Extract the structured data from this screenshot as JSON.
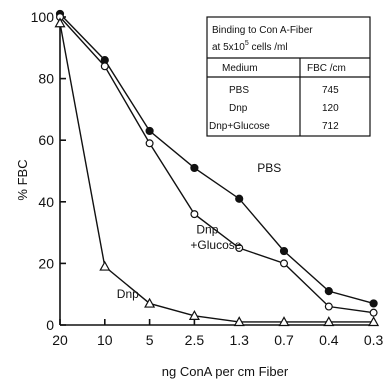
{
  "chart_data": {
    "type": "line",
    "xlabel": "ng ConA per cm Fiber",
    "ylabel": "% FBC",
    "categories": [
      "20",
      "10",
      "5",
      "2.5",
      "1.3",
      "0.7",
      "0.4",
      "0.3"
    ],
    "ylim": [
      0,
      100
    ],
    "yticks": [
      0,
      20,
      40,
      60,
      80,
      100
    ],
    "grid": false,
    "series": [
      {
        "name": "PBS",
        "marker": "filled-circle",
        "values": [
          101,
          86,
          63,
          51,
          41,
          24,
          11,
          7
        ]
      },
      {
        "name": "Dnp +Glucose",
        "marker": "open-circle",
        "values": [
          100,
          84,
          59,
          36,
          25,
          20,
          6,
          4
        ]
      },
      {
        "name": "Dnp",
        "marker": "open-triangle",
        "values": [
          98,
          19,
          7,
          3,
          1,
          1,
          1,
          1
        ]
      }
    ],
    "annotations": [
      {
        "text": "PBS",
        "x": "1.3",
        "y": 51
      },
      {
        "text": "Dnp",
        "x": "2.5",
        "y": 31
      },
      {
        "text": "+Glucose",
        "x": "2.5",
        "y": 26
      },
      {
        "text": "Dnp",
        "x": "10",
        "y": 10
      }
    ],
    "table": {
      "title_line1": "Binding to Con A-Fiber",
      "title_line2": "at 5x10",
      "title_exp": "5",
      "title_suffix": " cells /ml",
      "headers": [
        "Medium",
        "FBC /cm"
      ],
      "rows": [
        [
          "PBS",
          "745"
        ],
        [
          "Dnp",
          "120"
        ],
        [
          "Dnp+Glucose",
          "712"
        ]
      ]
    }
  }
}
